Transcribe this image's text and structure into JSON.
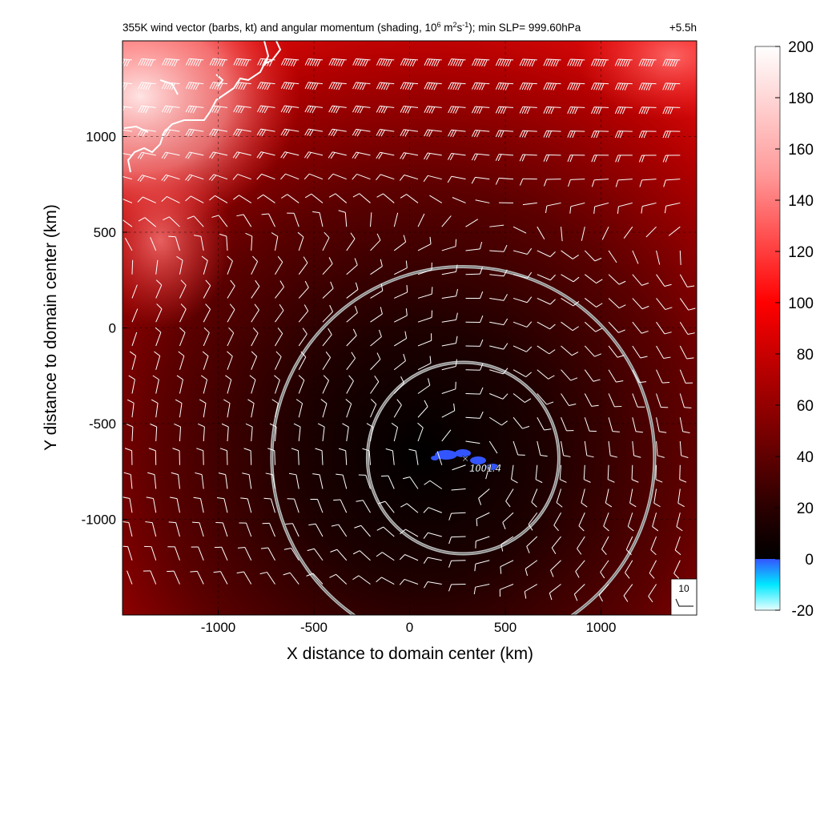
{
  "chart_data": {
    "type": "heatmap",
    "title": "355K wind vector (barbs, kt) and angular momentum (shading, 10^6 m^2s^-1); min SLP= 999.60hPa",
    "title_parts": {
      "prefix": "355K wind vector (barbs, kt) and angular momentum (shading, 10",
      "exp1": "6",
      "mid1": " m",
      "exp2": "2",
      "mid2": "s",
      "exp3": "-1",
      "suffix": "); min SLP= 999.60hPa"
    },
    "time_label": "+5.5h",
    "xlabel": "X distance to domain center (km)",
    "ylabel": "Y distance to domain center (km)",
    "xlim": [
      -1500,
      1500
    ],
    "ylim": [
      -1500,
      1500
    ],
    "xticks": [
      -1000,
      -500,
      0,
      500,
      1000
    ],
    "yticks": [
      -1000,
      -500,
      0,
      500,
      1000
    ],
    "grid": true,
    "colorbar": {
      "range": [
        -20,
        200
      ],
      "ticks": [
        -20,
        0,
        20,
        40,
        60,
        80,
        100,
        120,
        140,
        160,
        180,
        200
      ],
      "stops": [
        {
          "value": -20,
          "color": "#e8ffff"
        },
        {
          "value": -10,
          "color": "#00e8ff"
        },
        {
          "value": 0,
          "color": "#3355ff"
        },
        {
          "value": 0.01,
          "color": "#000000"
        },
        {
          "value": 20,
          "color": "#2a0000"
        },
        {
          "value": 50,
          "color": "#7a0000"
        },
        {
          "value": 80,
          "color": "#c80000"
        },
        {
          "value": 100,
          "color": "#ff0000"
        },
        {
          "value": 150,
          "color": "#ff9999"
        },
        {
          "value": 200,
          "color": "#ffffff"
        }
      ]
    },
    "storm_center": {
      "x": 280,
      "y": -680,
      "label": "1001.4"
    },
    "range_rings_km": [
      500,
      1000
    ],
    "barb_reference": {
      "label": "10",
      "speed_kt": 10
    }
  }
}
